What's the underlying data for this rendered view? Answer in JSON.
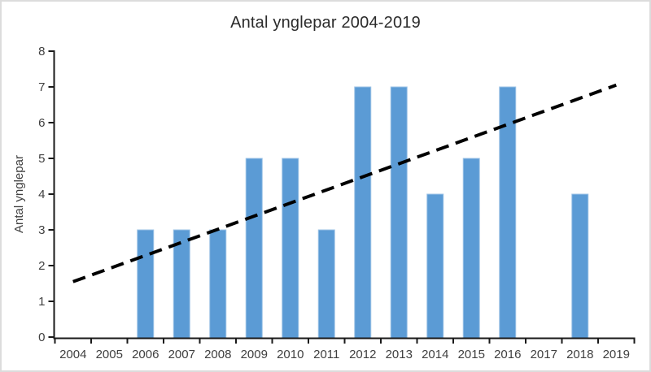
{
  "frame": {
    "border_color": "#dcdcdc",
    "background_color": "#ffffff"
  },
  "chart": {
    "title": "Antal ynglepar 2004-2019",
    "y_axis_title": "Antal ynglepar"
  },
  "chart_data": {
    "type": "bar",
    "title": "Antal ynglepar 2004-2019",
    "xlabel": "",
    "ylabel": "Antal ynglepar",
    "categories": [
      "2004",
      "2005",
      "2006",
      "2007",
      "2008",
      "2009",
      "2010",
      "2011",
      "2012",
      "2013",
      "2014",
      "2015",
      "2016",
      "2017",
      "2018",
      "2019"
    ],
    "values": [
      0,
      0,
      3,
      3,
      3,
      5,
      5,
      3,
      7,
      7,
      4,
      5,
      7,
      0,
      4,
      0
    ],
    "ylim": [
      0,
      8
    ],
    "yticks": [
      0,
      1,
      2,
      3,
      4,
      5,
      6,
      7,
      8
    ],
    "grid": false,
    "legend": false,
    "bar_color": "#5B9BD5",
    "bar_edge_color": "#9DC3E6",
    "axis_color": "#1a1a1a",
    "tick_label_color": "#404040",
    "title_color": "#2b2b2b",
    "trendline": {
      "style": "dashed",
      "color": "#000000",
      "start_category": "2004",
      "end_category": "2019",
      "start_value": 1.55,
      "end_value": 7.05
    }
  }
}
